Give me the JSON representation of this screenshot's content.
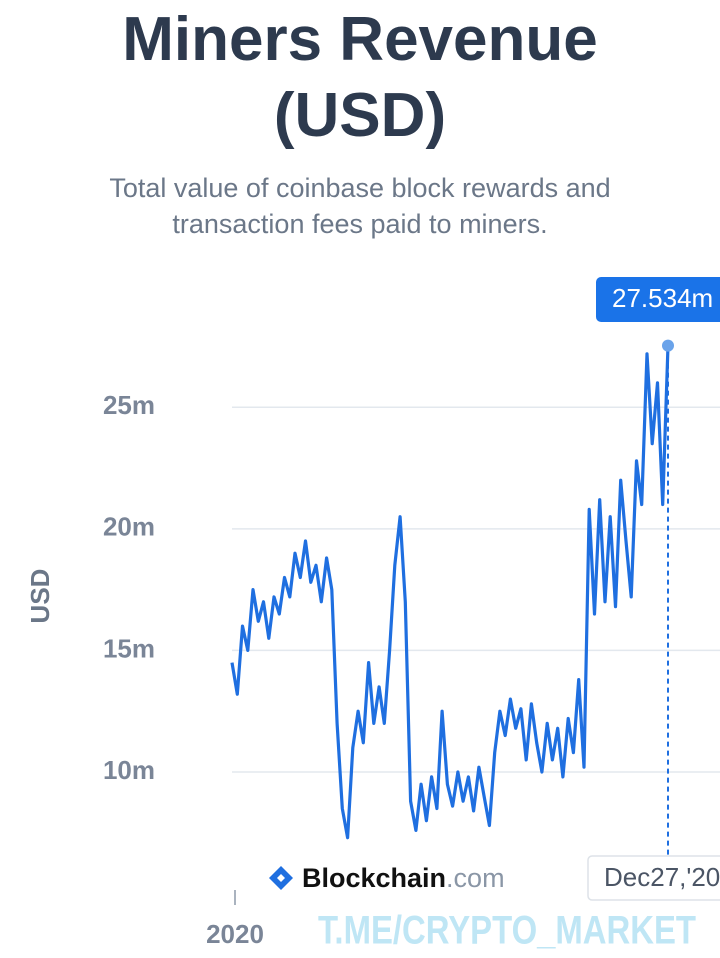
{
  "chart_data": {
    "type": "line",
    "title": "Miners Revenue (USD)",
    "subtitle": "Total value of coinbase block rewards and transaction fees paid to miners.",
    "y_label": "USD",
    "color": "#1f6fe0",
    "grid": true,
    "ylim": [
      6.3,
      28.3
    ],
    "yticks": [
      {
        "value": 10,
        "label": "10m"
      },
      {
        "value": 15,
        "label": "15m"
      },
      {
        "value": 20,
        "label": "20m"
      },
      {
        "value": 25,
        "label": "25m"
      }
    ],
    "xticks": [
      {
        "value": 0,
        "label": "2020"
      }
    ],
    "values": [
      14.5,
      13.2,
      16,
      15,
      17.5,
      16.2,
      17,
      15.5,
      17.2,
      16.5,
      18,
      17.2,
      19,
      18,
      19.5,
      17.8,
      18.5,
      17,
      18.8,
      17.5,
      12,
      8.5,
      7.3,
      11,
      12.5,
      11.2,
      14.5,
      12,
      13.5,
      12,
      15,
      18.5,
      20.5,
      17,
      8.8,
      7.6,
      9.5,
      8,
      9.8,
      8.5,
      12.5,
      9.5,
      8.6,
      10,
      8.8,
      9.8,
      8.4,
      10.2,
      9,
      7.8,
      10.8,
      12.5,
      11.5,
      13,
      11.8,
      12.6,
      10.5,
      12.8,
      11.2,
      10,
      12,
      10.5,
      11.8,
      9.8,
      12.2,
      10.8,
      13.8,
      10.2,
      20.8,
      16.5,
      21.2,
      17,
      20.5,
      16.8,
      22,
      19.5,
      17.2,
      22.8,
      21,
      27.2,
      23.5,
      26,
      21,
      27.534
    ],
    "tooltip": {
      "date": "Dec27,'20",
      "value": 27.534,
      "value_label": "27.534m"
    },
    "watermarks": {
      "brand": "Blockchain",
      "brand_suffix": ".com",
      "channel": "T.ME/CRYPTO_MARKET"
    }
  }
}
